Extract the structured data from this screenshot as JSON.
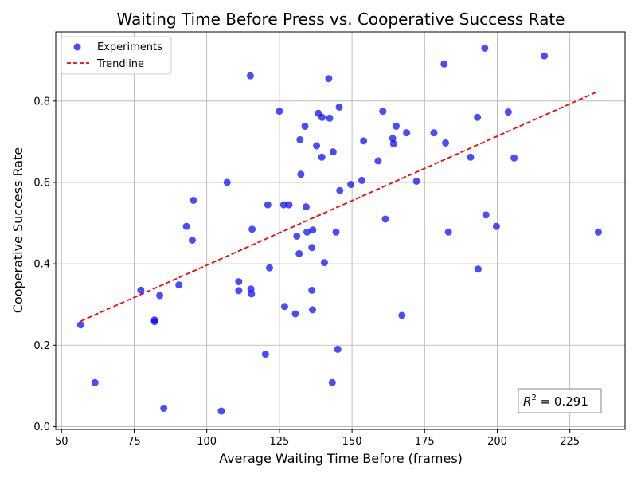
{
  "chart_data": {
    "type": "scatter",
    "title": "Waiting Time Before Press vs. Cooperative Success Rate",
    "xlabel": "Average Waiting Time Before (frames)",
    "ylabel": "Cooperative Success Rate",
    "xlim": [
      48,
      244
    ],
    "ylim": [
      -0.007,
      0.97
    ],
    "xticks": [
      50,
      75,
      100,
      125,
      150,
      175,
      200,
      225
    ],
    "yticks": [
      0.0,
      0.2,
      0.4,
      0.6,
      0.8
    ],
    "ytick_labels": [
      "0.0",
      "0.2",
      "0.4",
      "0.6",
      "0.8"
    ],
    "grid": true,
    "legend_position": "top-left",
    "series": [
      {
        "name": "Experiments",
        "kind": "scatter",
        "color": "#0000ff",
        "points": [
          [
            56.6,
            0.25
          ],
          [
            61.5,
            0.108
          ],
          [
            77.3,
            0.335
          ],
          [
            82,
            0.262
          ],
          [
            82,
            0.258
          ],
          [
            83.8,
            0.322
          ],
          [
            85.2,
            0.045
          ],
          [
            90.4,
            0.348
          ],
          [
            93,
            0.492
          ],
          [
            95,
            0.458
          ],
          [
            95.4,
            0.556
          ],
          [
            105,
            0.038
          ],
          [
            107,
            0.6
          ],
          [
            111,
            0.356
          ],
          [
            111,
            0.334
          ],
          [
            115,
            0.862
          ],
          [
            115.2,
            0.338
          ],
          [
            115.4,
            0.326
          ],
          [
            115.6,
            0.485
          ],
          [
            120.2,
            0.178
          ],
          [
            121,
            0.545
          ],
          [
            121.6,
            0.39
          ],
          [
            125,
            0.775
          ],
          [
            126.5,
            0.545
          ],
          [
            126.8,
            0.295
          ],
          [
            128.3,
            0.545
          ],
          [
            130.5,
            0.277
          ],
          [
            131,
            0.468
          ],
          [
            131.8,
            0.425
          ],
          [
            132.1,
            0.705
          ],
          [
            132.4,
            0.62
          ],
          [
            133.8,
            0.738
          ],
          [
            134.2,
            0.54
          ],
          [
            134.5,
            0.478
          ],
          [
            136.2,
            0.335
          ],
          [
            136.2,
            0.44
          ],
          [
            136.5,
            0.483
          ],
          [
            136.4,
            0.287
          ],
          [
            137.8,
            0.69
          ],
          [
            138.4,
            0.77
          ],
          [
            139.7,
            0.76
          ],
          [
            139.6,
            0.662
          ],
          [
            140.5,
            0.403
          ],
          [
            142,
            0.855
          ],
          [
            142.3,
            0.758
          ],
          [
            143.2,
            0.108
          ],
          [
            143.5,
            0.675
          ],
          [
            144.5,
            0.478
          ],
          [
            145.1,
            0.19
          ],
          [
            145.6,
            0.785
          ],
          [
            145.8,
            0.58
          ],
          [
            149.6,
            0.595
          ],
          [
            153.4,
            0.605
          ],
          [
            154,
            0.702
          ],
          [
            159,
            0.653
          ],
          [
            160.6,
            0.775
          ],
          [
            161.5,
            0.51
          ],
          [
            164,
            0.708
          ],
          [
            164.3,
            0.695
          ],
          [
            165.2,
            0.738
          ],
          [
            167.2,
            0.273
          ],
          [
            168.8,
            0.722
          ],
          [
            172.2,
            0.603
          ],
          [
            178.2,
            0.722
          ],
          [
            181.7,
            0.891
          ],
          [
            182.2,
            0.697
          ],
          [
            183.2,
            0.478
          ],
          [
            190.8,
            0.662
          ],
          [
            193.2,
            0.76
          ],
          [
            193.4,
            0.387
          ],
          [
            195.7,
            0.93
          ],
          [
            196.1,
            0.52
          ],
          [
            199.7,
            0.492
          ],
          [
            203.8,
            0.773
          ],
          [
            205.8,
            0.66
          ],
          [
            216.2,
            0.911
          ],
          [
            234.8,
            0.478
          ]
        ]
      },
      {
        "name": "Trendline",
        "kind": "line",
        "color": "#ff0000",
        "x": [
          56.6,
          234.8
        ],
        "y": [
          0.259,
          0.824
        ]
      }
    ],
    "annotation": {
      "r2_label": "R",
      "r2_value_text": " = 0.291",
      "position": "bottom-right"
    }
  }
}
